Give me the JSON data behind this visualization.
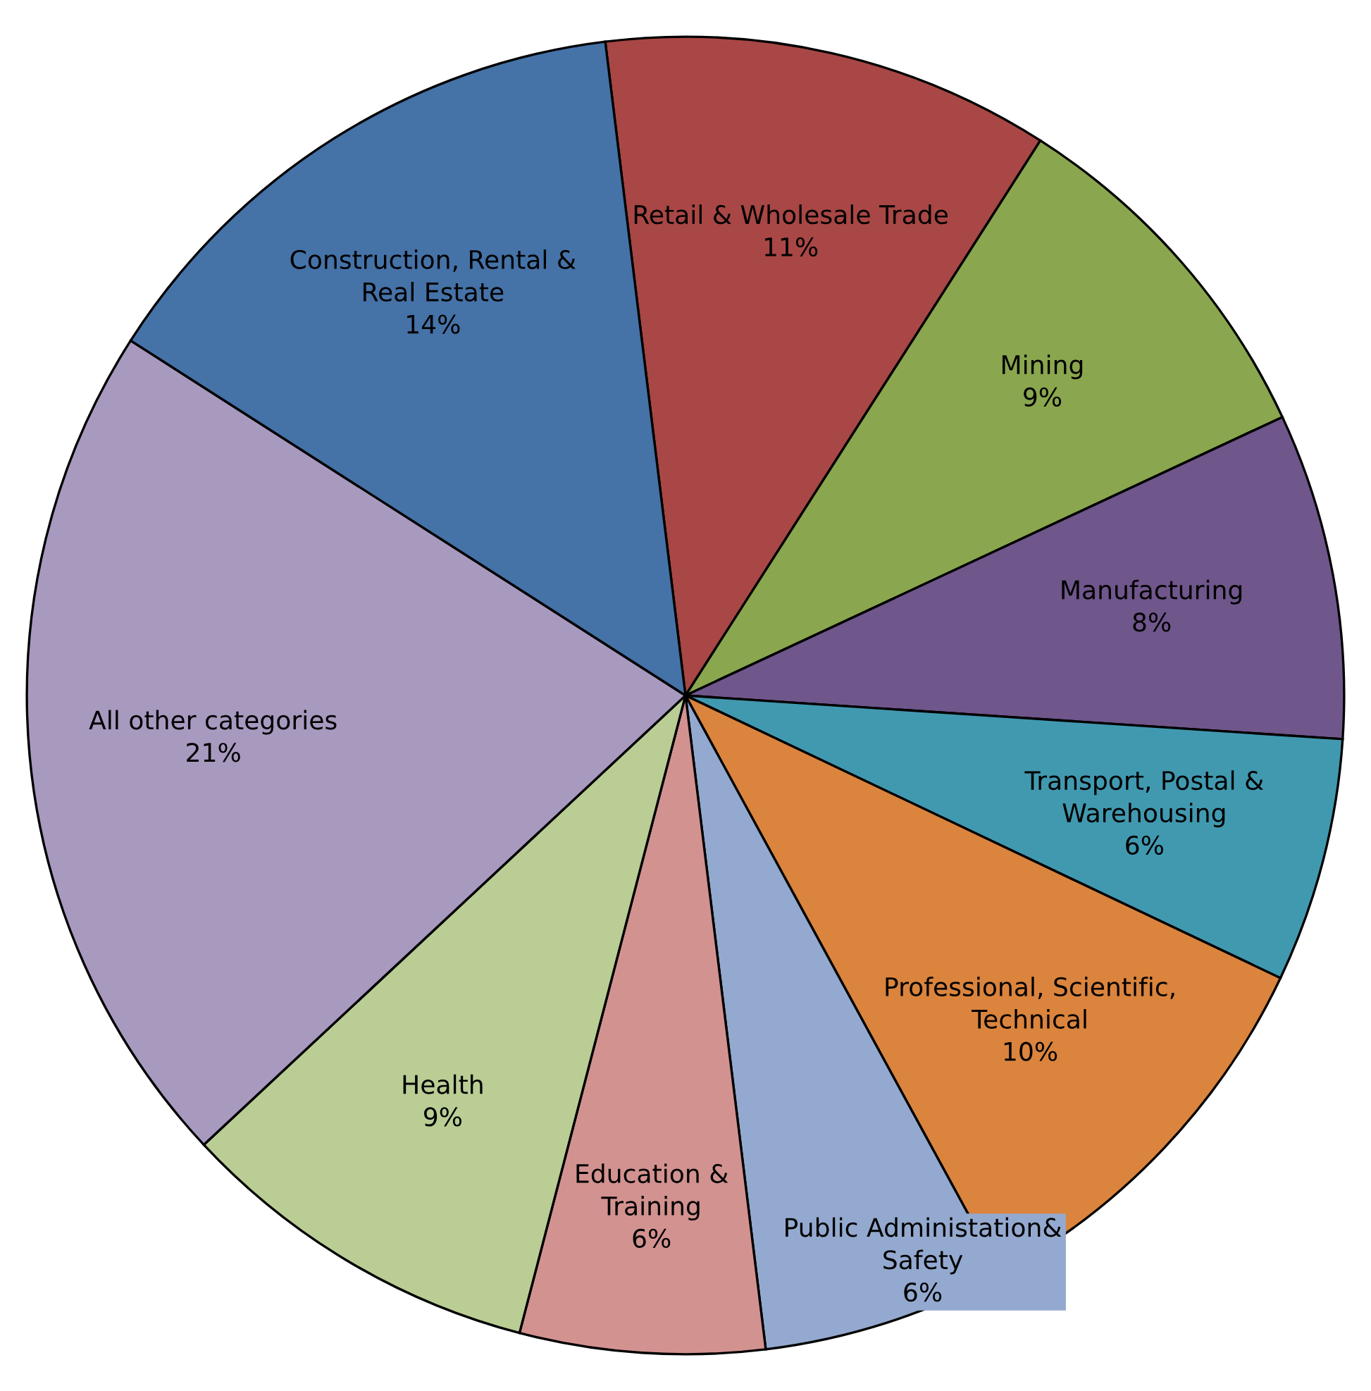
{
  "chart_data": {
    "type": "pie",
    "categories": [
      "Retail & Wholesale Trade",
      "Mining",
      "Manufacturing",
      "Transport, Postal &\nWarehousing",
      "Professional, Scientific,\nTechnical",
      "Public Administation&\nSafety",
      "Education &\nTraining",
      "Health",
      "All other categories",
      "Construction, Rental &\nReal Estate"
    ],
    "values": [
      11,
      9,
      8,
      6,
      10,
      6,
      6,
      9,
      21,
      14
    ],
    "value_labels": [
      "11%",
      "9%",
      "8%",
      "6%",
      "10%",
      "6%",
      "6%",
      "9%",
      "21%",
      "14%"
    ],
    "colors": [
      "#a84745",
      "#8aa64e",
      "#6f568b",
      "#4199b0",
      "#db843d",
      "#94a9cf",
      "#d29290",
      "#b9cd95",
      "#a899bf",
      "#4572a7"
    ],
    "legend": false
  }
}
